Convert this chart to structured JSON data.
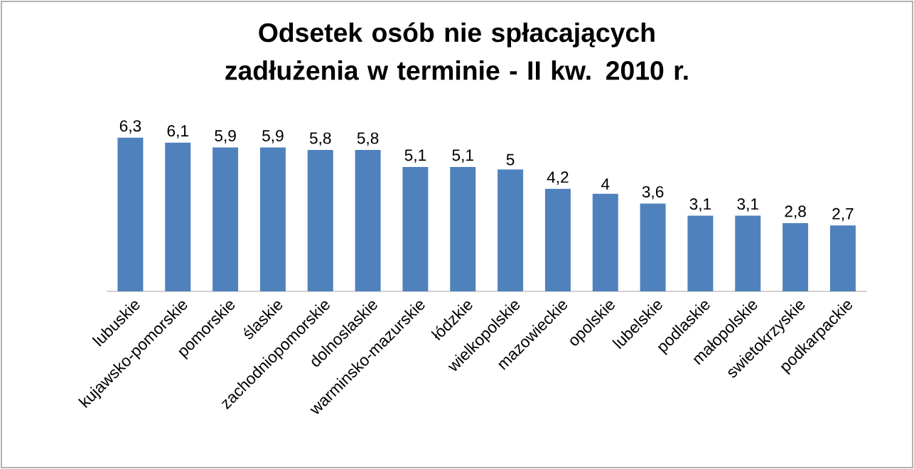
{
  "chart_data": {
    "type": "bar",
    "title": "Odsetek osób nie spłacających zadłużenia w terminie - II kw. 2010 r.",
    "categories": [
      "lubuskie",
      "kujawsko-pomorskie",
      "pomorskie",
      "ślaskie",
      "zachodniopomorskie",
      "dolnoslaskie",
      "warminsko-mazurskie",
      "łódzkie",
      "wielkopolskie",
      "mazowieckie",
      "opolskie",
      "lubelskie",
      "podlaskie",
      "małopolskie",
      "swietokrzyskie",
      "podkarpackie"
    ],
    "values": [
      6.3,
      6.1,
      5.9,
      5.9,
      5.8,
      5.8,
      5.1,
      5.1,
      5,
      4.2,
      4,
      3.6,
      3.1,
      3.1,
      2.8,
      2.7
    ],
    "value_labels": [
      "6,3",
      "6,1",
      "5,9",
      "5,9",
      "5,8",
      "5,8",
      "5,1",
      "5,1",
      "5",
      "4,2",
      "4",
      "3,6",
      "3,1",
      "3,1",
      "2,8",
      "2,7"
    ],
    "color": "#4f81bd"
  }
}
